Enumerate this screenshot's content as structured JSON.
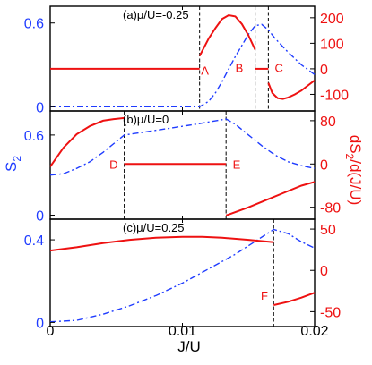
{
  "colors": {
    "s2": "#1f3cff",
    "deriv": "#ee1111",
    "axis": "#000000"
  },
  "chart_data": [
    {
      "type": "line",
      "panel_label": "(a)μ/U=-0.25",
      "xlim": [
        0,
        0.02
      ],
      "ylim_left": [
        -0.03,
        0.72
      ],
      "ylim_right": [
        -165,
        245
      ],
      "yticks_left": [
        {
          "v": 0,
          "label": "0"
        },
        {
          "v": 0.6,
          "label": "0.6"
        }
      ],
      "yticks_right": [
        {
          "v": 200,
          "label": "200"
        },
        {
          "v": 100,
          "label": "100"
        },
        {
          "v": 0,
          "label": "0"
        },
        {
          "v": -100,
          "label": "-100"
        }
      ],
      "vlines": [
        0.0113,
        0.0155,
        0.0165
      ],
      "s2": {
        "axis": "left",
        "x": [
          0,
          0.005,
          0.011,
          0.0113,
          0.012,
          0.0125,
          0.013,
          0.0135,
          0.014,
          0.0145,
          0.015,
          0.0155,
          0.016,
          0.0165,
          0.017,
          0.018,
          0.019,
          0.02
        ],
        "y": [
          0,
          0,
          0,
          0,
          0.04,
          0.1,
          0.18,
          0.27,
          0.36,
          0.44,
          0.52,
          0.58,
          0.59,
          0.55,
          0.49,
          0.39,
          0.3,
          0.23
        ]
      },
      "deriv": {
        "axis": "right",
        "segments": [
          {
            "x": [
              0,
              0.0113
            ],
            "y": [
              0,
              0
            ]
          },
          {
            "x": [
              0.0113,
              0.012,
              0.0125,
              0.013,
              0.0135,
              0.014,
              0.0145,
              0.015,
              0.0155
            ],
            "y": [
              50,
              120,
              160,
              195,
              210,
              205,
              175,
              130,
              75
            ]
          },
          {
            "x": [
              0.0155,
              0.0165
            ],
            "y": [
              0,
              0
            ]
          },
          {
            "x": [
              0.0165,
              0.0168,
              0.0172,
              0.0176,
              0.018,
              0.0185,
              0.019,
              0.0195,
              0.02
            ],
            "y": [
              -55,
              -95,
              -115,
              -118,
              -112,
              -100,
              -85,
              -65,
              -45
            ]
          }
        ]
      },
      "letters": [
        {
          "text": "A",
          "x": 0.0117,
          "yr": -5
        },
        {
          "text": "B",
          "x": 0.0143,
          "yr": 5
        },
        {
          "text": "C",
          "x": 0.0173,
          "yr": 5
        }
      ]
    },
    {
      "type": "line",
      "panel_label": "(b)μ/U=0",
      "xlim": [
        0,
        0.02
      ],
      "ylim_left": [
        -0.03,
        0.78
      ],
      "ylim_right": [
        -102,
        98
      ],
      "yticks_left": [
        {
          "v": 0,
          "label": "0"
        },
        {
          "v": 0.6,
          "label": "0.6"
        }
      ],
      "yticks_right": [
        {
          "v": 80,
          "label": "80"
        },
        {
          "v": 0,
          "label": "0"
        },
        {
          "v": -80,
          "label": "-80"
        }
      ],
      "vlines": [
        0.0056,
        0.0133
      ],
      "s2": {
        "axis": "left",
        "x": [
          0,
          0.001,
          0.002,
          0.003,
          0.004,
          0.0056,
          0.007,
          0.009,
          0.011,
          0.0133,
          0.014,
          0.015,
          0.016,
          0.017,
          0.018,
          0.019,
          0.02
        ],
        "y": [
          0.3,
          0.31,
          0.35,
          0.4,
          0.47,
          0.6,
          0.62,
          0.65,
          0.68,
          0.72,
          0.68,
          0.6,
          0.52,
          0.45,
          0.4,
          0.37,
          0.35
        ]
      },
      "deriv": {
        "axis": "right",
        "segments": [
          {
            "x": [
              0,
              0.001,
              0.002,
              0.003,
              0.004,
              0.0048,
              0.0056
            ],
            "y": [
              -5,
              30,
              55,
              70,
              80,
              83,
              85
            ]
          },
          {
            "x": [
              0.0056,
              0.0133
            ],
            "y": [
              0,
              0
            ]
          },
          {
            "x": [
              0.0133,
              0.015,
              0.0165,
              0.018,
              0.019,
              0.02
            ],
            "y": [
              -95,
              -80,
              -65,
              -50,
              -40,
              -33
            ]
          }
        ]
      },
      "letters": [
        {
          "text": "D",
          "x": 0.0048,
          "yr": 0
        },
        {
          "text": "E",
          "x": 0.0141,
          "yr": 0
        }
      ]
    },
    {
      "type": "line",
      "panel_label": "(c)μ/U=0.25",
      "xlim": [
        0,
        0.02
      ],
      "ylim_left": [
        -0.02,
        0.5
      ],
      "ylim_right": [
        -68,
        62
      ],
      "yticks_left": [
        {
          "v": 0,
          "label": "0"
        },
        {
          "v": 0.4,
          "label": "0.4"
        }
      ],
      "yticks_right": [
        {
          "v": 50,
          "label": "50"
        },
        {
          "v": 0,
          "label": "0"
        },
        {
          "v": -50,
          "label": "-50"
        }
      ],
      "vlines": [
        0.0169
      ],
      "s2": {
        "axis": "left",
        "x": [
          0,
          0.002,
          0.004,
          0.006,
          0.008,
          0.01,
          0.012,
          0.014,
          0.0169,
          0.018,
          0.019,
          0.02
        ],
        "y": [
          0.003,
          0.01,
          0.04,
          0.08,
          0.13,
          0.19,
          0.26,
          0.33,
          0.45,
          0.43,
          0.39,
          0.36
        ]
      },
      "deriv": {
        "axis": "right",
        "segments": [
          {
            "x": [
              0,
              0.002,
              0.004,
              0.006,
              0.008,
              0.01,
              0.0115,
              0.013,
              0.015,
              0.0169
            ],
            "y": [
              24,
              28,
              33,
              37,
              39.5,
              40.5,
              40.5,
              39.5,
              37,
              34
            ]
          },
          {
            "x": [
              0.0169,
              0.018,
              0.019,
              0.02
            ],
            "y": [
              -42,
              -38,
              -33,
              -27
            ]
          }
        ]
      },
      "letters": [
        {
          "text": "F",
          "x": 0.0162,
          "yr": -30
        }
      ]
    }
  ],
  "xticks": [
    {
      "v": 0,
      "label": "0"
    },
    {
      "v": 0.01,
      "label": "0.01"
    },
    {
      "v": 0.02,
      "label": "0.02"
    }
  ],
  "xlabel": "J/U",
  "ylabel_left": "S",
  "ylabel_left_sub": "2",
  "ylabel_right": "dS",
  "ylabel_right_sub": "2",
  "ylabel_right_tail": "/d(J/U)"
}
